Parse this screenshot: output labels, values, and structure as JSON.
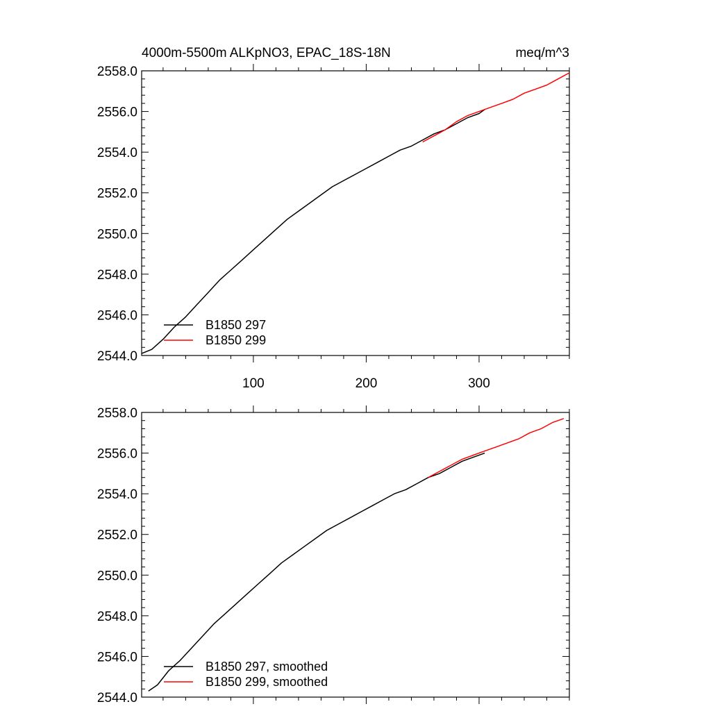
{
  "header": {
    "left_title": "4000m-5500m ALKpNO3, EPAC_18S-18N",
    "right_title": "meq/m^3"
  },
  "colors": {
    "run_297": "#000000",
    "run_299": "#ff0000"
  },
  "chart_data": [
    {
      "type": "line",
      "panel": "top",
      "xlim": [
        1,
        380
      ],
      "ylim": [
        2544.0,
        2558.0
      ],
      "xticks": [
        100,
        200,
        300
      ],
      "xtick_labels": [
        "100",
        "200",
        "300"
      ],
      "yticks": [
        2544.0,
        2546.0,
        2548.0,
        2550.0,
        2552.0,
        2554.0,
        2556.0,
        2558.0
      ],
      "ytick_labels": [
        "2544.0",
        "2546.0",
        "2548.0",
        "2550.0",
        "2552.0",
        "2554.0",
        "2556.0",
        "2558.0"
      ],
      "grid": false,
      "legend_position": "bottom-left",
      "series": [
        {
          "name": "B1850 297",
          "color": "#000000",
          "x": [
            1,
            10,
            20,
            30,
            40,
            50,
            60,
            70,
            80,
            90,
            100,
            110,
            120,
            130,
            140,
            150,
            160,
            170,
            180,
            190,
            200,
            210,
            220,
            230,
            240,
            250,
            260,
            270,
            280,
            290,
            300,
            305
          ],
          "y": [
            2544.1,
            2544.3,
            2544.8,
            2545.4,
            2545.9,
            2546.5,
            2547.1,
            2547.7,
            2548.2,
            2548.7,
            2549.2,
            2549.7,
            2550.2,
            2550.7,
            2551.1,
            2551.5,
            2551.9,
            2552.3,
            2552.6,
            2552.9,
            2553.2,
            2553.5,
            2553.8,
            2554.1,
            2554.3,
            2554.6,
            2554.9,
            2555.1,
            2555.4,
            2555.7,
            2555.9,
            2556.1
          ]
        },
        {
          "name": "B1850 299",
          "color": "#ff0000",
          "x": [
            250,
            260,
            270,
            280,
            290,
            300,
            310,
            320,
            330,
            340,
            350,
            360,
            370,
            380
          ],
          "y": [
            2554.5,
            2554.8,
            2555.1,
            2555.5,
            2555.8,
            2556.0,
            2556.2,
            2556.4,
            2556.6,
            2556.9,
            2557.1,
            2557.3,
            2557.6,
            2557.9
          ]
        }
      ]
    },
    {
      "type": "line",
      "panel": "bottom",
      "xlim": [
        1,
        380
      ],
      "ylim": [
        2544.0,
        2558.0
      ],
      "xticks": [
        100,
        200,
        300
      ],
      "yticks": [
        2544.0,
        2546.0,
        2548.0,
        2550.0,
        2552.0,
        2554.0,
        2556.0,
        2558.0
      ],
      "ytick_labels": [
        "2544.0",
        "2546.0",
        "2548.0",
        "2550.0",
        "2552.0",
        "2554.0",
        "2556.0",
        "2558.0"
      ],
      "grid": false,
      "legend_position": "bottom-left",
      "series": [
        {
          "name": "B1850 297, smoothed",
          "color": "#000000",
          "x": [
            7,
            15,
            25,
            35,
            45,
            55,
            65,
            75,
            85,
            95,
            105,
            115,
            125,
            135,
            145,
            155,
            165,
            175,
            185,
            195,
            205,
            215,
            225,
            235,
            245,
            255,
            265,
            275,
            285,
            295,
            305
          ],
          "y": [
            2544.3,
            2544.6,
            2545.3,
            2545.8,
            2546.4,
            2547.0,
            2547.6,
            2548.1,
            2548.6,
            2549.1,
            2549.6,
            2550.1,
            2550.6,
            2551.0,
            2551.4,
            2551.8,
            2552.2,
            2552.5,
            2552.8,
            2553.1,
            2553.4,
            2553.7,
            2554.0,
            2554.2,
            2554.5,
            2554.8,
            2555.0,
            2555.3,
            2555.6,
            2555.8,
            2556.0
          ]
        },
        {
          "name": "B1850 299, smoothed",
          "color": "#ff0000",
          "x": [
            255,
            265,
            275,
            285,
            295,
            305,
            315,
            325,
            335,
            345,
            355,
            365,
            375
          ],
          "y": [
            2554.8,
            2555.1,
            2555.4,
            2555.7,
            2555.9,
            2556.1,
            2556.3,
            2556.5,
            2556.7,
            2557.0,
            2557.2,
            2557.5,
            2557.7
          ]
        }
      ]
    }
  ]
}
